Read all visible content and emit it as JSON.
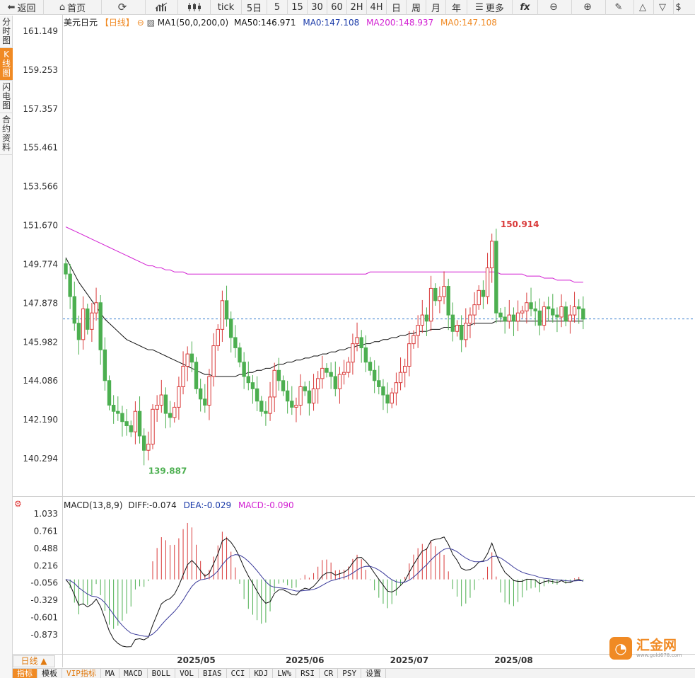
{
  "toolbar": {
    "back": "返回",
    "home": "首页",
    "tick": "tick",
    "periods": [
      "5日",
      "5",
      "15",
      "30",
      "60",
      "2H",
      "4H",
      "日",
      "周",
      "月",
      "年"
    ],
    "more": "更多",
    "fx": "fx"
  },
  "sidetabs": [
    "分时图",
    "K线图",
    "闪电图",
    "合约资料"
  ],
  "legend": {
    "symbol": "美元日元",
    "period": "【日线】",
    "ma_setting": "MA1(50,0,200,0)",
    "ma50": "MA50:146.971",
    "ma0": "MA0:147.108",
    "ma200": "MA200:148.937",
    "ma0b": "MA0:147.108"
  },
  "macd_legend": {
    "name": "MACD(13,8,9)",
    "diff": "DIFF:-0.074",
    "dea": "DEA:-0.029",
    "macd": "MACD:-0.090"
  },
  "colors": {
    "up": "#d93a3a",
    "down": "#4caf50",
    "ma50": "#111111",
    "ma200": "#d21fd2",
    "dea": "#3a3a9a",
    "accent": "#f08a24"
  },
  "chart_data": {
    "type": "candlestick",
    "price_axis": [
      "161.149",
      "159.253",
      "157.357",
      "155.461",
      "153.566",
      "151.670",
      "149.774",
      "147.878",
      "145.982",
      "144.086",
      "142.190",
      "140.294"
    ],
    "macd_axis": [
      "1.033",
      "0.761",
      "0.488",
      "0.216",
      "-0.056",
      "-0.329",
      "-0.601",
      "-0.873"
    ],
    "x_labels": [
      "2025/05",
      "2025/06",
      "2025/07",
      "2025/08"
    ],
    "high_label": "150.914",
    "low_label": "139.887",
    "last_price": 147.108,
    "closes": [
      149.3,
      148.2,
      146.9,
      146.1,
      147.6,
      146.6,
      147.4,
      147.9,
      145.6,
      144.1,
      142.9,
      142.6,
      142.5,
      142.1,
      141.9,
      141.6,
      142.6,
      141.4,
      140.7,
      141.0,
      142.7,
      142.9,
      143.4,
      142.5,
      142.3,
      142.8,
      143.8,
      144.8,
      145.4,
      145.0,
      143.7,
      143.2,
      142.9,
      144.3,
      145.8,
      146.6,
      148.0,
      147.1,
      146.2,
      145.7,
      145.0,
      144.3,
      144.0,
      143.7,
      143.1,
      142.6,
      142.5,
      143.3,
      144.6,
      144.1,
      143.6,
      143.1,
      142.8,
      142.9,
      143.8,
      143.6,
      143.0,
      143.7,
      144.2,
      144.7,
      144.5,
      144.3,
      143.7,
      144.4,
      144.5,
      145.0,
      145.9,
      146.2,
      145.7,
      145.0,
      144.6,
      144.1,
      143.8,
      143.4,
      143.0,
      143.5,
      144.0,
      144.5,
      144.8,
      145.9,
      146.3,
      146.8,
      147.3,
      147.0,
      148.6,
      148.0,
      148.2,
      148.7,
      147.3,
      146.5,
      146.8,
      146.1,
      146.9,
      147.3,
      147.8,
      148.5,
      148.2,
      149.6,
      150.9,
      147.4,
      147.2,
      147.0,
      147.3,
      147.0,
      147.4,
      147.5,
      147.9,
      147.6,
      147.5,
      146.8,
      147.7,
      147.6,
      147.3,
      147.2,
      147.7,
      147.0,
      147.3,
      147.7,
      147.6,
      147.1
    ],
    "ma50": [
      150.1,
      149.7,
      149.3,
      148.9,
      148.6,
      148.3,
      148.0,
      147.7,
      147.4,
      147.1,
      146.9,
      146.7,
      146.5,
      146.3,
      146.1,
      146.0,
      145.9,
      145.8,
      145.7,
      145.6,
      145.6,
      145.5,
      145.4,
      145.3,
      145.2,
      145.1,
      145.0,
      144.9,
      144.8,
      144.7,
      144.6,
      144.5,
      144.4,
      144.4,
      144.3,
      144.3,
      144.3,
      144.3,
      144.3,
      144.3,
      144.4,
      144.4,
      144.5,
      144.5,
      144.6,
      144.6,
      144.7,
      144.7,
      144.8,
      144.9,
      144.9,
      145.0,
      145.0,
      145.1,
      145.1,
      145.2,
      145.2,
      145.3,
      145.3,
      145.4,
      145.4,
      145.5,
      145.5,
      145.6,
      145.6,
      145.7,
      145.7,
      145.8,
      145.8,
      145.9,
      145.9,
      146.0,
      146.0,
      146.1,
      146.1,
      146.2,
      146.2,
      146.3,
      146.3,
      146.4,
      146.4,
      146.5,
      146.5,
      146.5,
      146.6,
      146.6,
      146.6,
      146.7,
      146.7,
      146.7,
      146.8,
      146.8,
      146.8,
      146.8,
      146.9,
      146.9,
      146.9,
      146.9,
      146.9,
      147.0,
      147.0,
      147.0,
      147.0,
      147.0,
      147.0,
      147.0,
      147.0,
      147.0,
      147.0,
      147.0,
      147.0,
      147.0,
      147.0,
      147.0,
      147.0,
      147.0,
      147.0,
      147.0,
      147.0,
      147.0
    ],
    "ma200": [
      151.6,
      151.5,
      151.4,
      151.3,
      151.2,
      151.1,
      151.0,
      150.9,
      150.8,
      150.7,
      150.6,
      150.5,
      150.4,
      150.3,
      150.2,
      150.1,
      150.0,
      149.9,
      149.8,
      149.7,
      149.7,
      149.6,
      149.6,
      149.5,
      149.5,
      149.4,
      149.4,
      149.4,
      149.3,
      149.3,
      149.3,
      149.3,
      149.3,
      149.3,
      149.3,
      149.3,
      149.3,
      149.3,
      149.3,
      149.3,
      149.3,
      149.3,
      149.3,
      149.3,
      149.3,
      149.3,
      149.3,
      149.3,
      149.3,
      149.3,
      149.3,
      149.3,
      149.3,
      149.3,
      149.3,
      149.3,
      149.3,
      149.3,
      149.3,
      149.3,
      149.3,
      149.3,
      149.3,
      149.3,
      149.3,
      149.3,
      149.3,
      149.3,
      149.3,
      149.3,
      149.4,
      149.4,
      149.4,
      149.4,
      149.4,
      149.4,
      149.4,
      149.4,
      149.4,
      149.4,
      149.4,
      149.4,
      149.4,
      149.4,
      149.4,
      149.4,
      149.4,
      149.4,
      149.4,
      149.4,
      149.4,
      149.4,
      149.4,
      149.4,
      149.4,
      149.4,
      149.4,
      149.4,
      149.4,
      149.4,
      149.3,
      149.3,
      149.3,
      149.3,
      149.3,
      149.3,
      149.2,
      149.2,
      149.2,
      149.2,
      149.1,
      149.1,
      149.1,
      149.0,
      149.0,
      149.0,
      149.0,
      148.9,
      148.9,
      148.9
    ]
  }
}
